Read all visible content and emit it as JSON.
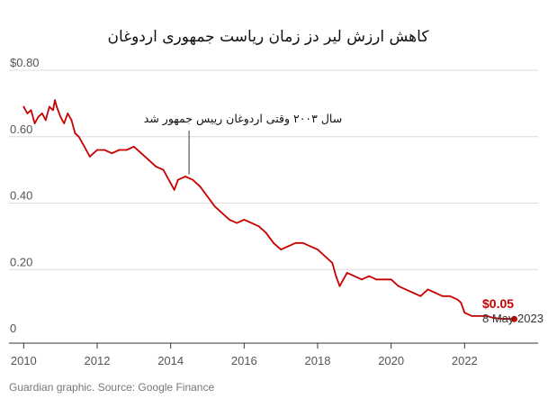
{
  "title": "کاهش ارزش لیر دز زمان ریاست جمهوری اردوغان",
  "source": "Guardian graphic. Source: Google Finance",
  "annotation": "سال ۲۰۰۳ وقتی اردوغان رییس جمهور شد",
  "colors": {
    "line": "#c70000",
    "grid": "#dcdcdc",
    "axis": "#333333",
    "text": "#555555"
  },
  "chart_data": {
    "type": "line",
    "title": "کاهش ارزش لیر دز زمان ریاست جمهوری اردوغان",
    "xlabel": "",
    "ylabel": "",
    "xlim": [
      2009.6,
      2024.0
    ],
    "ylim": [
      0,
      0.8
    ],
    "grid": "horizontal",
    "y_ticks": [
      {
        "value": 0.8,
        "label": "$0.80"
      },
      {
        "value": 0.6,
        "label": "0.60"
      },
      {
        "value": 0.4,
        "label": "0.40"
      },
      {
        "value": 0.2,
        "label": "0.20"
      },
      {
        "value": 0,
        "label": "0"
      }
    ],
    "x_ticks": [
      {
        "value": 2010,
        "label": "2010"
      },
      {
        "value": 2012,
        "label": "2012"
      },
      {
        "value": 2014,
        "label": "2014"
      },
      {
        "value": 2016,
        "label": "2016"
      },
      {
        "value": 2018,
        "label": "2018"
      },
      {
        "value": 2020,
        "label": "2020"
      },
      {
        "value": 2022,
        "label": "2022"
      }
    ],
    "series": [
      {
        "x": [
          2010.0,
          2010.1,
          2010.2,
          2010.3,
          2010.4,
          2010.5,
          2010.6,
          2010.7,
          2010.8,
          2010.85,
          2010.9,
          2011.0,
          2011.1,
          2011.2,
          2011.3,
          2011.4,
          2011.5,
          2011.6,
          2011.7,
          2011.8,
          2011.9,
          2012.0,
          2012.2,
          2012.4,
          2012.6,
          2012.8,
          2013.0,
          2013.2,
          2013.4,
          2013.6,
          2013.8,
          2014.0,
          2014.1,
          2014.2,
          2014.4,
          2014.6,
          2014.8,
          2015.0,
          2015.2,
          2015.4,
          2015.6,
          2015.8,
          2016.0,
          2016.2,
          2016.4,
          2016.6,
          2016.8,
          2017.0,
          2017.2,
          2017.4,
          2017.6,
          2017.8,
          2018.0,
          2018.2,
          2018.4,
          2018.5,
          2018.6,
          2018.7,
          2018.8,
          2019.0,
          2019.2,
          2019.4,
          2019.6,
          2019.8,
          2020.0,
          2020.2,
          2020.4,
          2020.6,
          2020.8,
          2021.0,
          2021.2,
          2021.4,
          2021.6,
          2021.8,
          2021.9,
          2022.0,
          2022.2,
          2022.4,
          2022.6,
          2022.8,
          2023.0,
          2023.2,
          2023.35
        ],
        "values": [
          0.69,
          0.67,
          0.68,
          0.64,
          0.66,
          0.67,
          0.65,
          0.69,
          0.68,
          0.71,
          0.69,
          0.66,
          0.64,
          0.67,
          0.65,
          0.61,
          0.6,
          0.58,
          0.56,
          0.54,
          0.55,
          0.56,
          0.56,
          0.55,
          0.56,
          0.56,
          0.57,
          0.55,
          0.53,
          0.51,
          0.5,
          0.46,
          0.44,
          0.47,
          0.48,
          0.47,
          0.45,
          0.42,
          0.39,
          0.37,
          0.35,
          0.34,
          0.35,
          0.34,
          0.33,
          0.31,
          0.28,
          0.26,
          0.27,
          0.28,
          0.28,
          0.27,
          0.26,
          0.24,
          0.22,
          0.18,
          0.15,
          0.17,
          0.19,
          0.18,
          0.17,
          0.18,
          0.17,
          0.17,
          0.17,
          0.15,
          0.14,
          0.13,
          0.12,
          0.14,
          0.13,
          0.12,
          0.12,
          0.11,
          0.1,
          0.07,
          0.06,
          0.06,
          0.06,
          0.054,
          0.052,
          0.051,
          0.051
        ]
      }
    ],
    "annotation_point": {
      "x": 2014.5,
      "y": 0.47
    },
    "last_point": {
      "x": 2023.35,
      "y": 0.051,
      "value_label": "$0.05",
      "date_label": "8 May 2023"
    }
  }
}
